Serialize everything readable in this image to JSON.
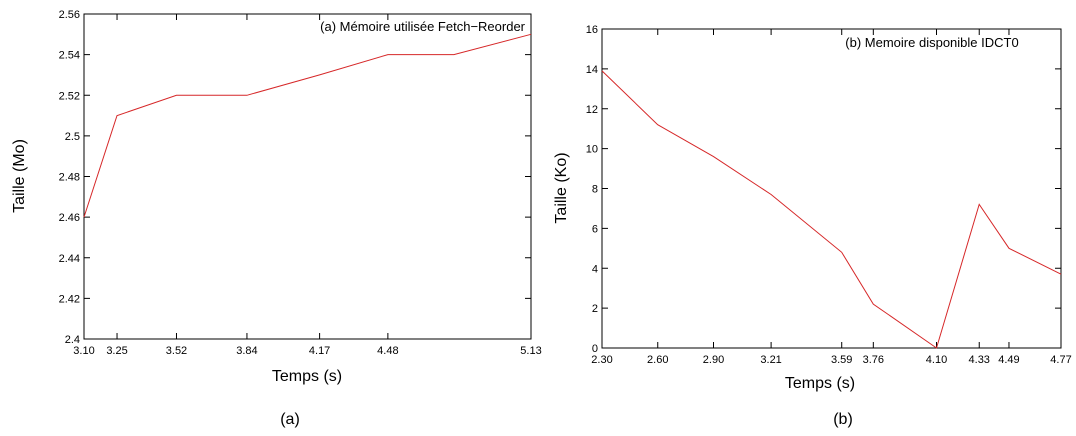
{
  "chart_data": [
    {
      "type": "line",
      "title": "(a) Mémoire utilisée Fetch−Reorder",
      "xlabel": "Temps (s)",
      "ylabel": "Taille (Mo)",
      "caption": "(a)",
      "xlim": [
        3.1,
        5.13
      ],
      "ylim": [
        2.4,
        2.56
      ],
      "xticks": [
        3.1,
        3.25,
        3.52,
        3.84,
        4.17,
        4.48,
        5.13
      ],
      "xtick_labels": [
        "3.10",
        "3.25",
        "3.52",
        "3.84",
        "4.17",
        "4.48",
        "5.13"
      ],
      "yticks": [
        2.4,
        2.42,
        2.44,
        2.46,
        2.48,
        2.5,
        2.52,
        2.54,
        2.56
      ],
      "ytick_labels": [
        "2.4",
        "2.42",
        "2.44",
        "2.46",
        "2.48",
        "2.5",
        "2.52",
        "2.54",
        "2.56"
      ],
      "grid": false,
      "color": "#d62728",
      "x": [
        3.1,
        3.25,
        3.52,
        3.84,
        4.17,
        4.48,
        4.78,
        5.13
      ],
      "y": [
        2.46,
        2.51,
        2.52,
        2.52,
        2.53,
        2.54,
        2.54,
        2.55
      ]
    },
    {
      "type": "line",
      "title": "(b) Memoire disponible IDCT0",
      "xlabel": "Temps (s)",
      "ylabel": "Taille (Ko)",
      "caption": "(b)",
      "xlim": [
        2.3,
        4.77
      ],
      "ylim": [
        0,
        16
      ],
      "xticks": [
        2.3,
        2.6,
        2.9,
        3.21,
        3.59,
        3.76,
        4.1,
        4.33,
        4.49,
        4.77
      ],
      "xtick_labels": [
        "2.30",
        "2.60",
        "2.90",
        "3.21",
        "3.59",
        "3.76",
        "4.10",
        "4.33",
        "4.49",
        "4.77"
      ],
      "yticks": [
        0,
        2,
        4,
        6,
        8,
        10,
        12,
        14,
        16
      ],
      "ytick_labels": [
        "0",
        "2",
        "4",
        "6",
        "8",
        "10",
        "12",
        "14",
        "16"
      ],
      "grid": false,
      "color": "#d62728",
      "x": [
        2.3,
        2.6,
        2.9,
        3.21,
        3.59,
        3.76,
        4.1,
        4.33,
        4.49,
        4.77
      ],
      "y": [
        13.9,
        11.2,
        9.6,
        7.7,
        4.8,
        2.2,
        0.0,
        7.2,
        5.0,
        3.7
      ]
    }
  ]
}
